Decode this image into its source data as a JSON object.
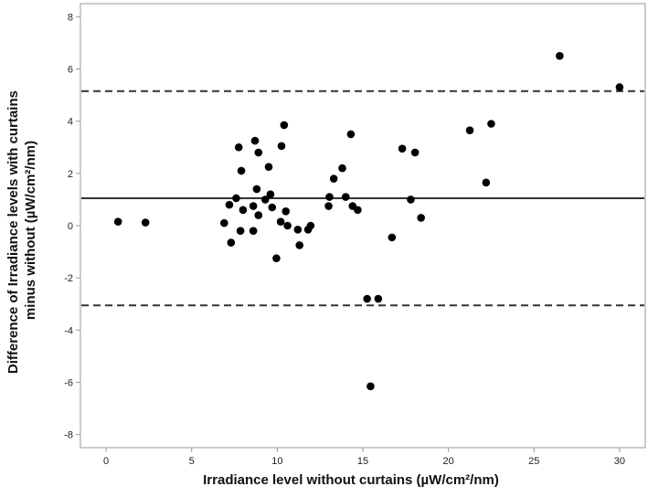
{
  "chart_data": {
    "type": "scatter",
    "title": "",
    "xlabel": "Irradiance level without curtains (µW/cm²/nm)",
    "ylabel_lines": [
      "Difference of Irradiance levels with curtains",
      "minus without (µW/cm²/nm)"
    ],
    "xlim": [
      -1.5,
      31.5
    ],
    "ylim": [
      -8.5,
      8.5
    ],
    "x_ticks": [
      0,
      5,
      10,
      15,
      20,
      25,
      30
    ],
    "y_ticks": [
      -8,
      -6,
      -4,
      -2,
      0,
      2,
      4,
      6,
      8
    ],
    "grid": false,
    "reference_lines": [
      {
        "y": 1.05,
        "style": "solid"
      },
      {
        "y": 5.15,
        "style": "dashed"
      },
      {
        "y": -3.05,
        "style": "dashed"
      }
    ],
    "colors": {
      "points": "#000000",
      "lines": "#333333",
      "axis": "#999999"
    },
    "points": [
      {
        "x": 0.7,
        "y": 0.15
      },
      {
        "x": 2.3,
        "y": 0.12
      },
      {
        "x": 6.9,
        "y": 0.1
      },
      {
        "x": 7.2,
        "y": 0.8
      },
      {
        "x": 7.3,
        "y": -0.65
      },
      {
        "x": 7.6,
        "y": 1.05
      },
      {
        "x": 7.75,
        "y": 3.0
      },
      {
        "x": 7.85,
        "y": -0.2
      },
      {
        "x": 7.9,
        "y": 2.1
      },
      {
        "x": 8.0,
        "y": 0.6
      },
      {
        "x": 8.6,
        "y": -0.2
      },
      {
        "x": 8.6,
        "y": 0.75
      },
      {
        "x": 8.7,
        "y": 3.25
      },
      {
        "x": 8.8,
        "y": 1.4
      },
      {
        "x": 8.9,
        "y": 2.8
      },
      {
        "x": 8.9,
        "y": 0.4
      },
      {
        "x": 9.3,
        "y": 1.0
      },
      {
        "x": 9.5,
        "y": 2.25
      },
      {
        "x": 9.6,
        "y": 1.2
      },
      {
        "x": 9.7,
        "y": 0.7
      },
      {
        "x": 9.95,
        "y": -1.25
      },
      {
        "x": 10.2,
        "y": 0.15
      },
      {
        "x": 10.25,
        "y": 3.05
      },
      {
        "x": 10.4,
        "y": 3.85
      },
      {
        "x": 10.5,
        "y": 0.55
      },
      {
        "x": 10.6,
        "y": 0.0
      },
      {
        "x": 11.2,
        "y": -0.15
      },
      {
        "x": 11.3,
        "y": -0.75
      },
      {
        "x": 11.8,
        "y": -0.15
      },
      {
        "x": 11.95,
        "y": 0.0
      },
      {
        "x": 13.0,
        "y": 0.75
      },
      {
        "x": 13.05,
        "y": 1.1
      },
      {
        "x": 13.3,
        "y": 1.8
      },
      {
        "x": 13.8,
        "y": 2.2
      },
      {
        "x": 14.0,
        "y": 1.1
      },
      {
        "x": 14.3,
        "y": 3.5
      },
      {
        "x": 14.4,
        "y": 0.75
      },
      {
        "x": 14.7,
        "y": 0.6
      },
      {
        "x": 15.25,
        "y": -2.8
      },
      {
        "x": 15.45,
        "y": -6.15
      },
      {
        "x": 15.9,
        "y": -2.8
      },
      {
        "x": 16.7,
        "y": -0.45
      },
      {
        "x": 17.3,
        "y": 2.95
      },
      {
        "x": 17.8,
        "y": 1.0
      },
      {
        "x": 18.05,
        "y": 2.8
      },
      {
        "x": 18.4,
        "y": 0.3
      },
      {
        "x": 21.25,
        "y": 3.65
      },
      {
        "x": 22.2,
        "y": 1.65
      },
      {
        "x": 22.5,
        "y": 3.9
      },
      {
        "x": 26.5,
        "y": 6.5
      },
      {
        "x": 30.0,
        "y": 5.3
      }
    ]
  }
}
